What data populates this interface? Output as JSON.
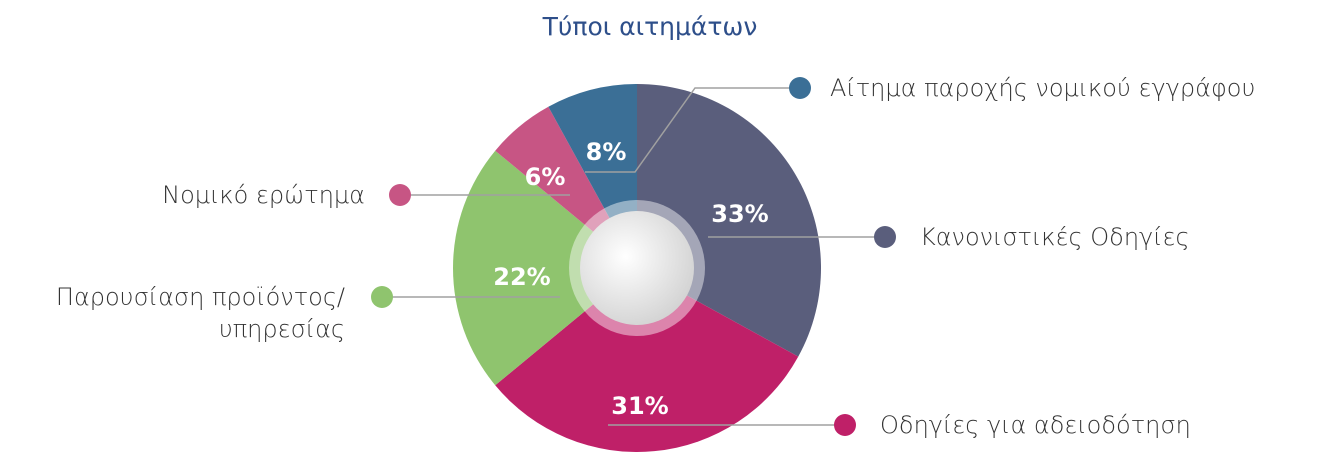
{
  "chart_data": {
    "type": "pie",
    "title": "Τύποι αιτημάτων",
    "categories": [
      "Κανονιστικές Οδηγίες",
      "Οδηγίες για αδειοδότηση",
      "Παρουσίαση προϊόντος/\nυπηρεσίας",
      "Νομικό ερώτημα",
      "Αίτημα παροχής νομικού εγγράφου"
    ],
    "values": [
      33,
      31,
      22,
      6,
      8
    ],
    "value_labels": [
      "33%",
      "31%",
      "22%",
      "6%",
      "8%"
    ],
    "colors": [
      "#5a5e7c",
      "#bf2068",
      "#8fc46e",
      "#c75584",
      "#3b6f96"
    ]
  }
}
